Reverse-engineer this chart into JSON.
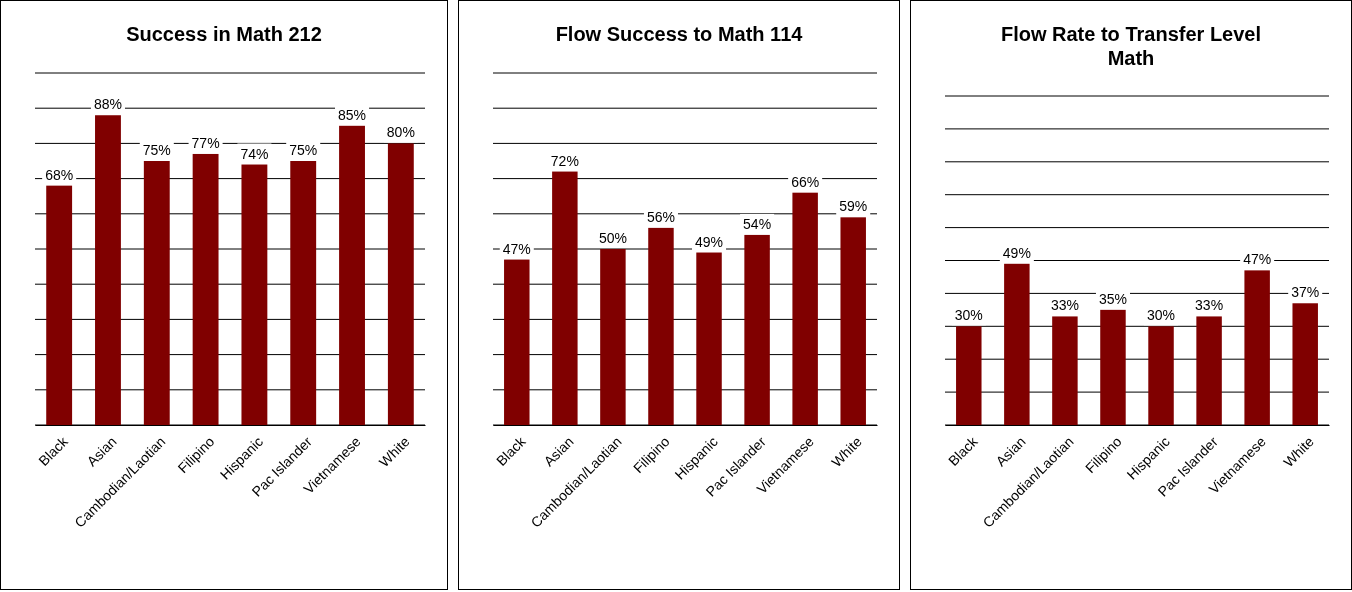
{
  "chart_data": [
    {
      "type": "bar",
      "title": "Success in Math 212",
      "categories": [
        "Black",
        "Asian",
        "Cambodian/Laotian",
        "Filipino",
        "Hispanic",
        "Pac Islander",
        "Vietnamese",
        "White"
      ],
      "values": [
        68,
        88,
        75,
        77,
        74,
        75,
        85,
        80
      ],
      "color": "#800000",
      "ylim": [
        0,
        100
      ],
      "yticks": [
        {
          "value": 0,
          "label": null
        },
        {
          "value": 10,
          "label": null
        },
        {
          "value": 20,
          "label": null
        },
        {
          "value": 30,
          "label": null
        },
        {
          "value": 40,
          "label": null
        },
        {
          "value": 50,
          "label": null
        },
        {
          "value": 60,
          "label": null
        },
        {
          "value": 70,
          "label": null
        },
        {
          "value": 80,
          "label": null
        },
        {
          "value": 90,
          "label": null
        },
        {
          "value": 100,
          "label": null
        }
      ],
      "grid": "y",
      "tick_labels": "x",
      "data_labels": true,
      "value_labels": [
        "68%",
        "88%",
        "75%",
        "77%",
        "74%",
        "75%",
        "85%",
        "80%"
      ]
    },
    {
      "type": "bar",
      "title": "Flow Success to Math 114",
      "categories": [
        "Black",
        "Asian",
        "Cambodian/Laotian",
        "Filipino",
        "Hispanic",
        "Pac Islander",
        "Vietnamese",
        "White"
      ],
      "values": [
        47,
        72,
        50,
        56,
        49,
        54,
        66,
        59
      ],
      "color": "#800000",
      "ylim": [
        0,
        100
      ],
      "yticks": [
        {
          "value": 0,
          "label": null
        },
        {
          "value": 10,
          "label": null
        },
        {
          "value": 20,
          "label": null
        },
        {
          "value": 30,
          "label": null
        },
        {
          "value": 40,
          "label": null
        },
        {
          "value": 50,
          "label": null
        },
        {
          "value": 60,
          "label": null
        },
        {
          "value": 70,
          "label": null
        },
        {
          "value": 80,
          "label": null
        },
        {
          "value": 90,
          "label": null
        },
        {
          "value": 100,
          "label": null
        }
      ],
      "grid": "y",
      "tick_labels": "x",
      "data_labels": true,
      "value_labels": [
        "47%",
        "72%",
        "50%",
        "56%",
        "49%",
        "54%",
        "66%",
        "59%"
      ]
    },
    {
      "type": "bar",
      "title": "Flow Rate to Transfer Level Math",
      "categories": [
        "Black",
        "Asian",
        "Cambodian/Laotian",
        "Filipino",
        "Hispanic",
        "Pac Islander",
        "Vietnamese",
        "White"
      ],
      "values": [
        30,
        49,
        33,
        35,
        30,
        33,
        47,
        37
      ],
      "color": "#800000",
      "ylim": [
        0,
        100
      ],
      "yticks": [
        {
          "value": 0,
          "label": null
        },
        {
          "value": 10,
          "label": null
        },
        {
          "value": 20,
          "label": null
        },
        {
          "value": 30,
          "label": null
        },
        {
          "value": 40,
          "label": null
        },
        {
          "value": 50,
          "label": null
        },
        {
          "value": 60,
          "label": null
        },
        {
          "value": 70,
          "label": null
        },
        {
          "value": 80,
          "label": null
        },
        {
          "value": 90,
          "label": null
        },
        {
          "value": 100,
          "label": null
        }
      ],
      "grid": "y",
      "tick_labels": "x",
      "data_labels": true,
      "value_labels": [
        "30%",
        "49%",
        "33%",
        "35%",
        "30%",
        "33%",
        "47%",
        "37%"
      ]
    }
  ]
}
